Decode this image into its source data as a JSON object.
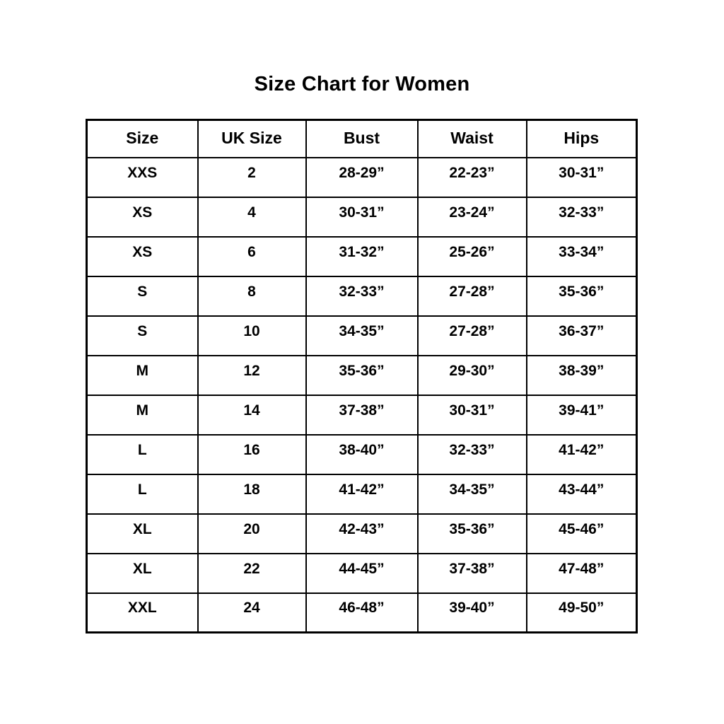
{
  "page": {
    "title": "Size Chart for Women"
  },
  "chart_data": {
    "type": "table",
    "title": "Size Chart for Women",
    "columns": [
      "Size",
      "UK Size",
      "Bust",
      "Waist",
      "Hips"
    ],
    "rows": [
      [
        "XXS",
        "2",
        "28-29”",
        "22-23”",
        "30-31”"
      ],
      [
        "XS",
        "4",
        "30-31”",
        "23-24”",
        "32-33”"
      ],
      [
        "XS",
        "6",
        "31-32”",
        "25-26”",
        "33-34”"
      ],
      [
        "S",
        "8",
        "32-33”",
        "27-28”",
        "35-36”"
      ],
      [
        "S",
        "10",
        "34-35”",
        "27-28”",
        "36-37”"
      ],
      [
        "M",
        "12",
        "35-36”",
        "29-30”",
        "38-39”"
      ],
      [
        "M",
        "14",
        "37-38”",
        "30-31”",
        "39-41”"
      ],
      [
        "L",
        "16",
        "38-40”",
        "32-33”",
        "41-42”"
      ],
      [
        "L",
        "18",
        "41-42”",
        "34-35”",
        "43-44”"
      ],
      [
        "XL",
        "20",
        "42-43”",
        "35-36”",
        "45-46”"
      ],
      [
        "XL",
        "22",
        "44-45”",
        "37-38”",
        "47-48”"
      ],
      [
        "XXL",
        "24",
        "46-48”",
        "39-40”",
        "49-50”"
      ]
    ],
    "layout": {
      "border_color": "#000000",
      "background": "#ffffff",
      "text_color": "#000000",
      "header_bold": true,
      "cells_bold": true
    }
  }
}
